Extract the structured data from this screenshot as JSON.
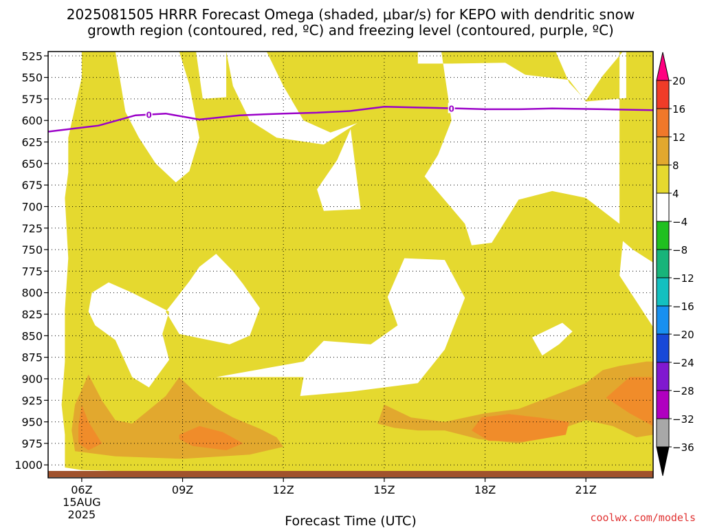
{
  "chart_data": {
    "type": "contour",
    "title_line1": "2025081505 HRRR Forecast Omega (shaded, μbar/s) for KEPO with dendritic snow",
    "title_line2": "growth region (contoured, red, ºC) and freezing level (contoured, purple, ºC)",
    "xlabel": "Forecast Time (UTC)",
    "y_axis": {
      "ticks": [
        525,
        550,
        575,
        600,
        625,
        650,
        675,
        700,
        725,
        750,
        775,
        800,
        825,
        850,
        875,
        900,
        925,
        950,
        975,
        1000
      ],
      "range": [
        520,
        1015
      ]
    },
    "x_axis": {
      "range_hours": [
        5,
        23
      ],
      "ticks": [
        {
          "hour": 6,
          "label": "06Z",
          "sub1": "15AUG",
          "sub2": "2025"
        },
        {
          "hour": 9,
          "label": "09Z"
        },
        {
          "hour": 12,
          "label": "12Z"
        },
        {
          "hour": 15,
          "label": "15Z"
        },
        {
          "hour": 18,
          "label": "18Z"
        },
        {
          "hour": 21,
          "label": "21Z"
        }
      ]
    },
    "grid": true,
    "omega_fields": [
      {
        "level": "4-8",
        "color": "#e5d92f",
        "rings": [
          [
            [
              6.0,
              520
            ],
            [
              6.0,
              550
            ],
            [
              5.6,
              620
            ],
            [
              5.6,
              660
            ],
            [
              5.5,
              690
            ],
            [
              5.6,
              760
            ],
            [
              5.5,
              820
            ],
            [
              5.5,
              880
            ],
            [
              5.4,
              930
            ],
            [
              5.5,
              965
            ],
            [
              5.5,
              1003
            ],
            [
              6.0,
              1006
            ],
            [
              7.0,
              1007
            ],
            [
              9.0,
              1008
            ],
            [
              11.0,
              1008
            ],
            [
              14.0,
              1007
            ],
            [
              16.0,
              1008
            ],
            [
              18.0,
              1008
            ],
            [
              20.0,
              1008
            ],
            [
              22.0,
              1009
            ],
            [
              23.0,
              1010
            ],
            [
              23.0,
              520
            ],
            [
              22.2,
              520
            ],
            [
              22.2,
              574
            ],
            [
              21.0,
              578
            ],
            [
              20.5,
              553
            ],
            [
              19.2,
              547
            ],
            [
              18.6,
              533
            ],
            [
              17.0,
              534
            ],
            [
              16.0,
              534
            ],
            [
              16.0,
              520
            ],
            [
              10.3,
              520
            ],
            [
              10.3,
              573
            ],
            [
              9.6,
              575
            ],
            [
              9.4,
              520
            ]
          ]
        ],
        "holes": [
          [
            [
              7.0,
              520
            ],
            [
              7.3,
              590
            ],
            [
              7.7,
              620
            ],
            [
              8.2,
              650
            ],
            [
              8.8,
              672
            ],
            [
              9.2,
              659
            ],
            [
              9.5,
              620
            ],
            [
              9.2,
              558
            ],
            [
              8.9,
              520
            ]
          ],
          [
            [
              10.3,
              520
            ],
            [
              10.5,
              560
            ],
            [
              11.0,
              600
            ],
            [
              11.8,
              620
            ],
            [
              13.2,
              628
            ],
            [
              14.2,
              603
            ],
            [
              13.4,
              614
            ],
            [
              12.6,
              600
            ],
            [
              12.0,
              560
            ],
            [
              11.5,
              520
            ]
          ],
          [
            [
              13.2,
              705
            ],
            [
              14.3,
              703
            ],
            [
              14.0,
              610
            ],
            [
              13.6,
              646
            ],
            [
              13.0,
              680
            ]
          ],
          [
            [
              16.7,
              520
            ],
            [
              17.0,
              600
            ],
            [
              16.6,
              640
            ],
            [
              16.2,
              665
            ],
            [
              17.4,
              720
            ],
            [
              17.6,
              745
            ],
            [
              18.2,
              742
            ],
            [
              19.0,
              692
            ],
            [
              20.0,
              682
            ],
            [
              21.0,
              690
            ],
            [
              22.0,
              720
            ],
            [
              22.0,
              520
            ]
          ],
          [
            [
              20.1,
              520
            ],
            [
              20.5,
              556
            ],
            [
              21.0,
              577
            ],
            [
              21.5,
              548
            ],
            [
              22.1,
              520
            ]
          ],
          [
            [
              6.2,
              822
            ],
            [
              6.4,
              838
            ],
            [
              7.0,
              855
            ],
            [
              7.5,
              898
            ],
            [
              8.0,
              910
            ],
            [
              8.6,
              878
            ],
            [
              8.4,
              848
            ],
            [
              8.6,
              822
            ],
            [
              7.5,
              800
            ],
            [
              6.8,
              788
            ],
            [
              6.3,
              800
            ]
          ],
          [
            [
              9.2,
              787
            ],
            [
              8.5,
              822
            ],
            [
              8.9,
              848
            ],
            [
              10.4,
              860
            ],
            [
              11.0,
              850
            ],
            [
              11.3,
              818
            ],
            [
              10.8,
              790
            ],
            [
              10.5,
              775
            ],
            [
              10.0,
              755
            ],
            [
              9.5,
              770
            ]
          ],
          [
            [
              10.0,
              898
            ],
            [
              12.6,
              898
            ],
            [
              12.5,
              920
            ],
            [
              14.0,
              915
            ],
            [
              16.0,
              905
            ],
            [
              16.8,
              866
            ],
            [
              17.4,
              806
            ],
            [
              16.8,
              762
            ],
            [
              15.6,
              760
            ],
            [
              15.1,
              805
            ],
            [
              15.4,
              838
            ],
            [
              14.6,
              860
            ],
            [
              13.2,
              856
            ],
            [
              12.6,
              880
            ]
          ],
          [
            [
              19.4,
              852
            ],
            [
              19.7,
              873
            ],
            [
              20.2,
              860
            ],
            [
              20.6,
              845
            ],
            [
              20.3,
              835
            ]
          ],
          [
            [
              22.1,
              740
            ],
            [
              22.4,
              750
            ],
            [
              23.0,
              765
            ],
            [
              23.0,
              840
            ],
            [
              22.5,
              810
            ],
            [
              22.0,
              780
            ]
          ]
        ]
      },
      {
        "level": "8-12",
        "color": "#e2a82e",
        "rings": [
          [
            [
              5.7,
              960
            ],
            [
              5.8,
              930
            ],
            [
              6.2,
              895
            ],
            [
              6.6,
              925
            ],
            [
              7.0,
              948
            ],
            [
              7.5,
              952
            ],
            [
              8.0,
              936
            ],
            [
              8.5,
              920
            ],
            [
              8.9,
              898
            ],
            [
              9.5,
              920
            ],
            [
              10.0,
              934
            ],
            [
              10.5,
              945
            ],
            [
              11.3,
              958
            ],
            [
              11.8,
              968
            ],
            [
              12.0,
              979
            ],
            [
              11.0,
              988
            ],
            [
              9.0,
              993
            ],
            [
              7.0,
              990
            ],
            [
              5.8,
              984
            ]
          ],
          [
            [
              14.8,
              952
            ],
            [
              15.0,
              930
            ],
            [
              15.8,
              945
            ],
            [
              16.8,
              950
            ],
            [
              18.0,
              940
            ],
            [
              19.0,
              935
            ],
            [
              20.0,
              920
            ],
            [
              21.0,
              905
            ],
            [
              21.5,
              890
            ],
            [
              22.0,
              885
            ],
            [
              22.8,
              880
            ],
            [
              23.0,
              880
            ],
            [
              23.0,
              965
            ],
            [
              22.5,
              968
            ],
            [
              21.8,
              955
            ],
            [
              21.0,
              948
            ],
            [
              20.5,
              955
            ],
            [
              20.0,
              965
            ],
            [
              19.0,
              975
            ],
            [
              17.8,
              970
            ],
            [
              16.8,
              960
            ],
            [
              16.0,
              960
            ],
            [
              15.3,
              957
            ]
          ]
        ]
      },
      {
        "level": "12-16",
        "color": "#f08c2a",
        "rings": [
          [
            [
              5.9,
              955
            ],
            [
              6.0,
              930
            ],
            [
              6.2,
              950
            ],
            [
              6.6,
              975
            ],
            [
              6.2,
              983
            ],
            [
              5.9,
              975
            ]
          ],
          [
            [
              8.9,
              965
            ],
            [
              9.5,
              955
            ],
            [
              10.2,
              962
            ],
            [
              10.8,
              975
            ],
            [
              10.3,
              983
            ],
            [
              9.3,
              978
            ],
            [
              8.9,
              970
            ]
          ],
          [
            [
              17.6,
              960
            ],
            [
              17.9,
              945
            ],
            [
              18.7,
              941
            ],
            [
              19.6,
              945
            ],
            [
              20.5,
              950
            ],
            [
              20.4,
              965
            ],
            [
              19.2,
              973
            ],
            [
              18.1,
              972
            ]
          ],
          [
            [
              21.6,
              922
            ],
            [
              22.3,
              898
            ],
            [
              23.0,
              898
            ],
            [
              23.0,
              955
            ],
            [
              22.3,
              940
            ]
          ]
        ]
      }
    ],
    "freezing_level": {
      "label": "0",
      "color": "#9a00c8",
      "points": [
        [
          5.0,
          613
        ],
        [
          6.5,
          606
        ],
        [
          7.6,
          594
        ],
        [
          8.5,
          592
        ],
        [
          9.5,
          599
        ],
        [
          10.7,
          594
        ],
        [
          12.0,
          592
        ],
        [
          13.0,
          591
        ],
        [
          14.0,
          589
        ],
        [
          15.0,
          584
        ],
        [
          16.0,
          585
        ],
        [
          17.2,
          586
        ],
        [
          18.0,
          587
        ],
        [
          19.0,
          587
        ],
        [
          20.0,
          586
        ],
        [
          21.5,
          587
        ],
        [
          23.0,
          588
        ]
      ],
      "label_hours": [
        8.0,
        17.0
      ]
    },
    "colorbar": {
      "labels": [
        "20",
        "16",
        "12",
        "8",
        "4",
        "-4",
        "-8",
        "-12",
        "-16",
        "-20",
        "-24",
        "-28",
        "-32",
        "-36"
      ],
      "colors": [
        "#ff0080",
        "#f03c28",
        "#f0782a",
        "#e2a82e",
        "#e5d92f",
        "#ffffff",
        "#20c020",
        "#18b47a",
        "#14c0c0",
        "#1890f0",
        "#1848d8",
        "#8018d0",
        "#b000c0",
        "#a8a8a8",
        "#000000"
      ]
    },
    "ground_color": "#a0522d",
    "credit": "coolwx.com/models"
  }
}
